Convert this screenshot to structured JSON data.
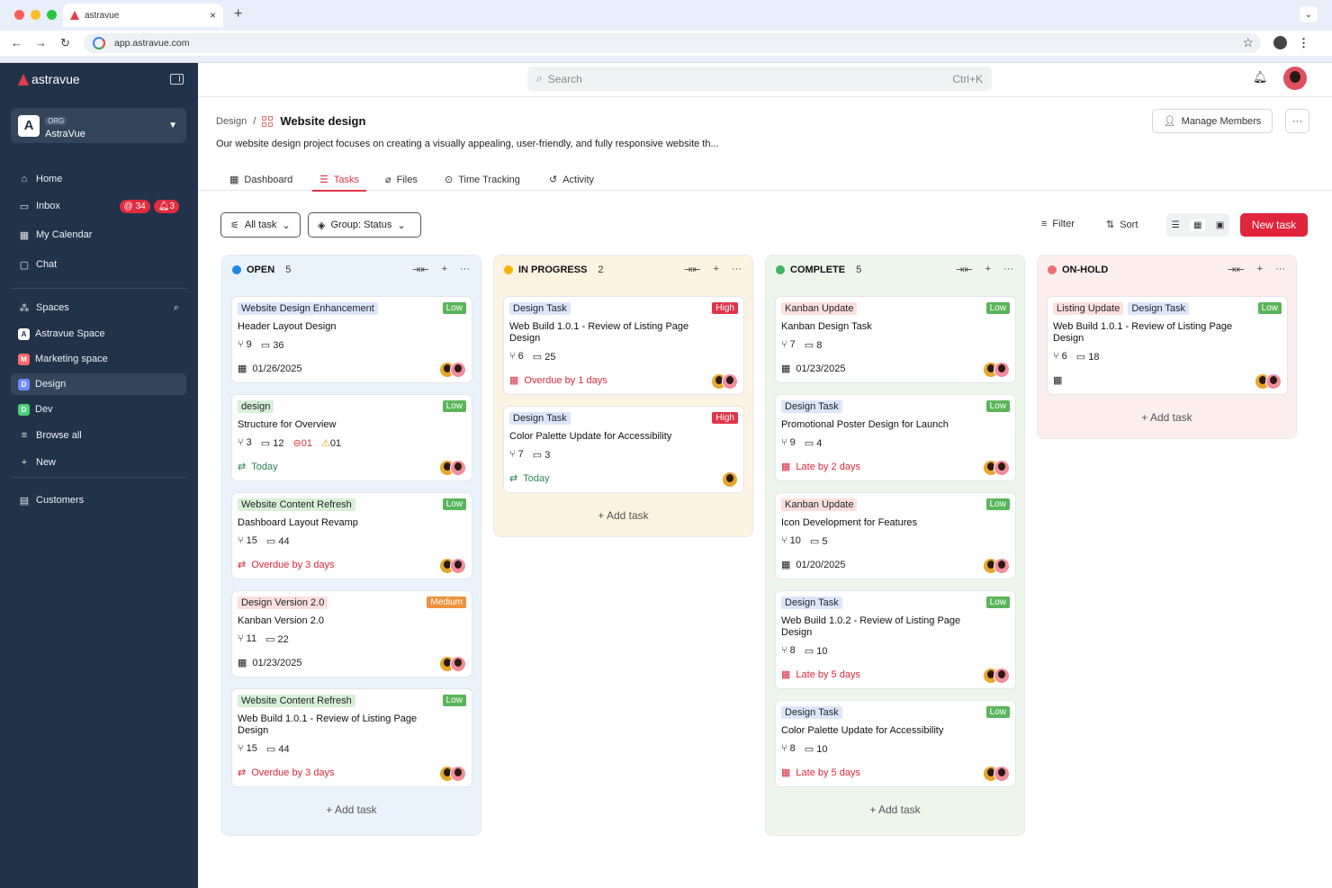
{
  "browser": {
    "tab_title": "astravue",
    "url": "app.astravue.com"
  },
  "sidebar": {
    "brand": "astravue",
    "org": {
      "tag": "ORG",
      "name": "AstraVue",
      "initial": "A"
    },
    "nav": [
      {
        "label": "Home",
        "icon": "home-icon"
      },
      {
        "label": "Inbox",
        "icon": "inbox-icon",
        "badges": [
          "@ 34",
          "3"
        ]
      },
      {
        "label": "My Calendar",
        "icon": "calendar-icon"
      },
      {
        "label": "Chat",
        "icon": "chat-icon"
      }
    ],
    "spaces_label": "Spaces",
    "spaces": [
      {
        "label": "Astravue Space",
        "initial": "A",
        "color": "#ffffff"
      },
      {
        "label": "Marketing space",
        "initial": "M",
        "color": "#ff6b6b"
      },
      {
        "label": "Design",
        "initial": "D",
        "color": "#6f8cff"
      },
      {
        "label": "Dev",
        "initial": "D",
        "color": "#4cd07a"
      }
    ],
    "browse_all": "Browse all",
    "new": "New",
    "customers": "Customers"
  },
  "topbar": {
    "search_placeholder": "Search",
    "shortcut": "Ctrl+K"
  },
  "page": {
    "breadcrumb_parent": "Design",
    "separator": "/",
    "title": "Website design",
    "description": "Our website design project focuses on creating a visually appealing, user-friendly, and fully responsive website th...",
    "manage_members": "Manage Members",
    "tabs": [
      "Dashboard",
      "Tasks",
      "Files",
      "Time Tracking",
      "Activity"
    ],
    "active_tab": "Tasks"
  },
  "toolbar": {
    "all_task": "All task",
    "group": "Group: Status",
    "filter": "Filter",
    "sort": "Sort",
    "new_task": "New task"
  },
  "add_task": "Add task",
  "columns": [
    {
      "name": "OPEN",
      "count": "5",
      "color": "#1e88e5",
      "bg": "#eaf3fc",
      "cards": [
        {
          "tags": [
            {
              "t": "Website Design Enhancement",
              "c": "#dbe6fb"
            }
          ],
          "prio": "Low",
          "title": "Header Layout Design",
          "sub": "9",
          "com": "36",
          "extra": [],
          "foot": "01/26/2025",
          "ft": "date"
        },
        {
          "tags": [
            {
              "t": "design",
              "c": "#d8f0d6"
            }
          ],
          "prio": "Low",
          "title": "Structure for Overview",
          "sub": "3",
          "com": "12",
          "extra": [
            "01",
            "01"
          ],
          "foot": "Today",
          "ft": "today"
        },
        {
          "tags": [
            {
              "t": "Website Content Refresh",
              "c": "#d8f0d6"
            }
          ],
          "prio": "Low",
          "title": "Dashboard Layout Revamp",
          "sub": "15",
          "com": "44",
          "extra": [],
          "foot": "Overdue by 3 days",
          "ft": "overdue"
        },
        {
          "tags": [
            {
              "t": "Design Version 2.0",
              "c": "#fde0dc"
            }
          ],
          "prio": "Medium",
          "title": "Kanban Version 2.0",
          "sub": "11",
          "com": "22",
          "extra": [],
          "foot": "01/23/2025",
          "ft": "date"
        },
        {
          "tags": [
            {
              "t": "Website Content Refresh",
              "c": "#d8f0d6"
            }
          ],
          "prio": "Low",
          "title": "Web Build 1.0.1 - Review of Listing Page Design",
          "sub": "15",
          "com": "44",
          "extra": [],
          "foot": "Overdue by 3 days",
          "ft": "overdue"
        }
      ]
    },
    {
      "name": "IN PROGRESS",
      "count": "2",
      "color": "#f5b400",
      "bg": "#fdf3e2",
      "cards": [
        {
          "tags": [
            {
              "t": "Design Task",
              "c": "#dbe6fb"
            }
          ],
          "prio": "High",
          "title": "Web Build 1.0.1 - Review of Listing Page Design",
          "sub": "6",
          "com": "25",
          "extra": [],
          "foot": "Overdue by 1 days",
          "ft": "overdue"
        },
        {
          "tags": [
            {
              "t": "Design Task",
              "c": "#dbe6fb"
            }
          ],
          "prio": "High",
          "title": "Color Palette Update for Accessibility",
          "sub": "7",
          "com": "3",
          "extra": [],
          "foot": "Today",
          "ft": "today"
        }
      ]
    },
    {
      "name": "COMPLETE",
      "count": "5",
      "color": "#43b35f",
      "bg": "#eef6ec",
      "cards": [
        {
          "tags": [
            {
              "t": "Kanban Update",
              "c": "#fde0dc"
            }
          ],
          "prio": "Low",
          "title": "Kanban Design Task",
          "sub": "7",
          "com": "8",
          "extra": [],
          "foot": "01/23/2025",
          "ft": "date"
        },
        {
          "tags": [
            {
              "t": "Design Task",
              "c": "#dbe6fb"
            }
          ],
          "prio": "Low",
          "title": "Promotional Poster Design for Launch",
          "sub": "9",
          "com": "4",
          "extra": [],
          "foot": "Late by 2 days",
          "ft": "late"
        },
        {
          "tags": [
            {
              "t": "Kanban Update",
              "c": "#fde0dc"
            }
          ],
          "prio": "Low",
          "title": "Icon Development for Features",
          "sub": "10",
          "com": "5",
          "extra": [],
          "foot": "01/20/2025",
          "ft": "date"
        },
        {
          "tags": [
            {
              "t": "Design Task",
              "c": "#dbe6fb"
            }
          ],
          "prio": "Low",
          "title": "Web Build 1.0.2 - Review of Listing Page Design",
          "sub": "8",
          "com": "10",
          "extra": [],
          "foot": "Late by 5 days",
          "ft": "late"
        },
        {
          "tags": [
            {
              "t": "Design Task",
              "c": "#dbe6fb"
            }
          ],
          "prio": "Low",
          "title": "Color Palette Update for Accessibility",
          "sub": "8",
          "com": "10",
          "extra": [],
          "foot": "Late by 5 days",
          "ft": "late"
        }
      ]
    },
    {
      "name": "ON-HOLD",
      "count": "",
      "color": "#f07070",
      "bg": "#fdeeee",
      "cards": [
        {
          "tags": [
            {
              "t": "Listing Update",
              "c": "#fde0dc"
            },
            {
              "t": "Design Task",
              "c": "#dbe6fb"
            }
          ],
          "prio": "Low",
          "title": "Web Build 1.0.1 - Review of Listing Page Design",
          "sub": "6",
          "com": "18",
          "extra": [],
          "foot": "",
          "ft": "date"
        }
      ]
    }
  ],
  "colors": {
    "accent": "#e0243c",
    "low": "#5ab55a",
    "medium": "#f0923a",
    "high": "#e0344a",
    "sidebar": "#223349"
  }
}
